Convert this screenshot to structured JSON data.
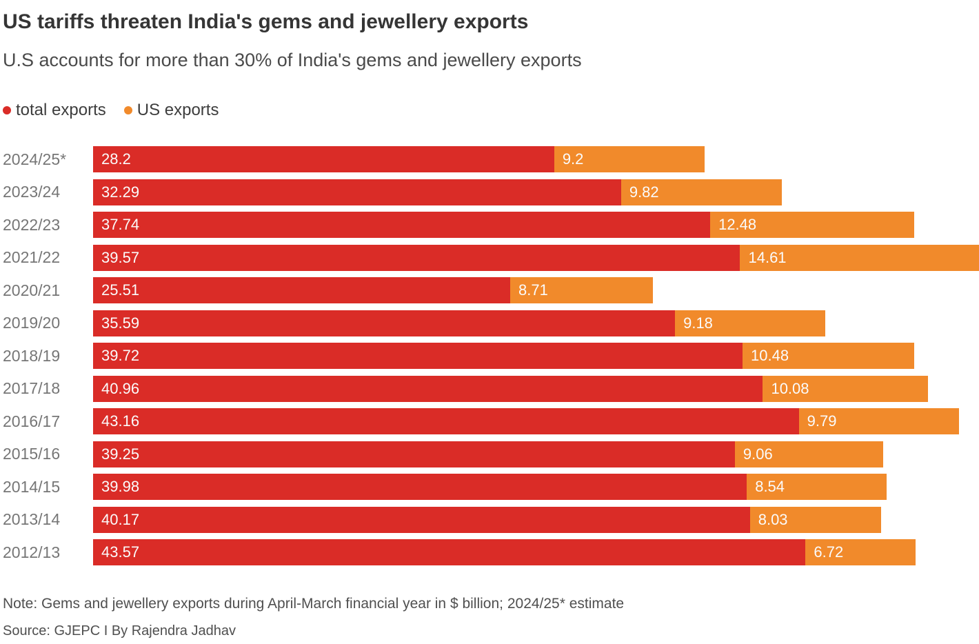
{
  "chart_data": {
    "type": "bar",
    "orientation": "horizontal",
    "stacked": true,
    "title": "US tariffs threaten India's gems and jewellery exports",
    "subtitle": "U.S accounts for more than 30% of India's gems and jewellery exports",
    "categories": [
      "2024/25*",
      "2023/24",
      "2022/23",
      "2021/22",
      "2020/21",
      "2019/20",
      "2018/19",
      "2017/18",
      "2016/17",
      "2015/16",
      "2014/15",
      "2013/14",
      "2012/13"
    ],
    "series": [
      {
        "name": "total exports",
        "color": "#da2c27",
        "values": [
          28.2,
          32.29,
          37.74,
          39.57,
          25.51,
          35.59,
          39.72,
          40.96,
          43.16,
          39.25,
          39.98,
          40.17,
          43.57
        ]
      },
      {
        "name": "US exports",
        "color": "#f18a2b",
        "values": [
          9.2,
          9.82,
          12.48,
          14.61,
          8.71,
          9.18,
          10.48,
          10.08,
          9.79,
          9.06,
          8.54,
          8.03,
          6.72
        ]
      }
    ],
    "legend": [
      {
        "label": "total exports",
        "color": "#da2c27"
      },
      {
        "label": "US exports",
        "color": "#f18a2b"
      }
    ],
    "legend_position": "top-left",
    "grid": false,
    "xlabel": "",
    "ylabel": "",
    "xmax": 54.18,
    "units": "$ billion"
  },
  "footer": {
    "note": "Note: Gems and jewellery exports during April-March financial year in $ billion; 2024/25* estimate",
    "source": "Source: GJEPC I By Rajendra Jadhav"
  }
}
